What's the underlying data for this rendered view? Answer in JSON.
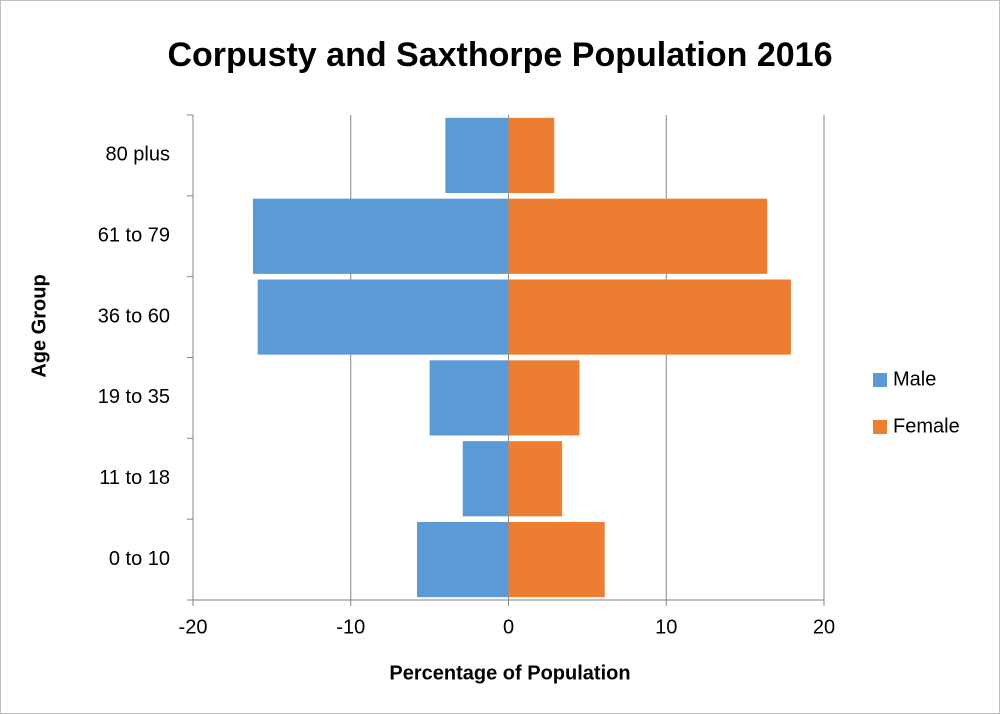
{
  "chart_data": {
    "type": "bar",
    "orientation": "horizontal",
    "title": "Corpusty and Saxthorpe Population 2016",
    "x_label": "Percentage of Population",
    "y_label": "Age Group",
    "categories": [
      "0 to 10",
      "11 to 18",
      "19 to 35",
      "36 to 60",
      "61 to 79",
      "80 plus"
    ],
    "series": [
      {
        "name": "Male",
        "color": "#5b9bd5",
        "values": [
          -5.8,
          -2.9,
          -5.0,
          -15.9,
          -16.2,
          -4.0
        ]
      },
      {
        "name": "Female",
        "color": "#ed7d31",
        "values": [
          6.1,
          3.4,
          4.5,
          17.9,
          16.4,
          2.9
        ]
      }
    ],
    "xlim": [
      -20,
      20
    ],
    "xticks": [
      -20,
      -10,
      0,
      10,
      20
    ],
    "grid": true,
    "legend": "right"
  }
}
